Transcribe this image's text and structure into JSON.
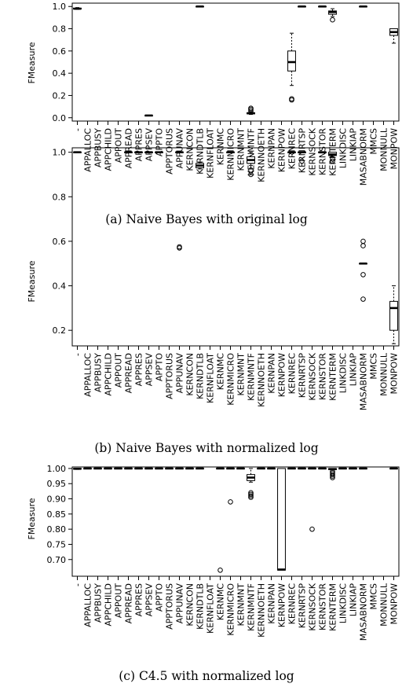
{
  "figure": {
    "captions": [
      "(a) Naive Bayes with original log",
      "(b) Naive Bayes with normalized log",
      "(c) C4.5 with normalized log"
    ]
  },
  "chart_data": [
    {
      "type": "box",
      "caption": "(a) Naive Bayes with original log",
      "ylabel": "FMeasure",
      "ylim": [
        -0.03,
        1.03
      ],
      "yticks": [
        0.0,
        0.2,
        0.4,
        0.6,
        0.8,
        1.0
      ],
      "ytick_labels": [
        "0.0",
        "0.2",
        "0.4",
        "0.6",
        "0.8",
        "1.0"
      ],
      "categories": [
        "-",
        "APPALLOC",
        "APPBUSY",
        "APPCHILD",
        "APPOUT",
        "APPREAD",
        "APPRES",
        "APPSEV",
        "APPTO",
        "APPTORUS",
        "APPUNAV",
        "KERNCON",
        "KERNDTLB",
        "KERNFLOAT",
        "KERNMC",
        "KERNMICRO",
        "KERNMNT",
        "KERNMNTF",
        "KERNNOETH",
        "KERNPAN",
        "KERNPOW",
        "KERNREC",
        "KERNRTSP",
        "KERNSOCK",
        "KERNSTOR",
        "KERNTERM",
        "LINKDISC",
        "LINKIAP",
        "MASABNORM",
        "MMCS",
        "MONNULL",
        "MONPOW"
      ],
      "boxes": [
        {
          "category": "-",
          "whislo": 0.975,
          "q1": 0.978,
          "med": 0.98,
          "q3": 0.985,
          "whishi": 0.99,
          "fliers": []
        },
        {
          "category": "APPSEV",
          "whislo": 0.02,
          "q1": 0.02,
          "med": 0.02,
          "q3": 0.02,
          "whishi": 0.02,
          "fliers": []
        },
        {
          "category": "KERNDTLB",
          "whislo": 1.0,
          "q1": 1.0,
          "med": 1.0,
          "q3": 1.0,
          "whishi": 1.0,
          "fliers": []
        },
        {
          "category": "KERNMNTF",
          "whislo": 0.03,
          "q1": 0.035,
          "med": 0.04,
          "q3": 0.045,
          "whishi": 0.05,
          "fliers": [
            0.06,
            0.075,
            0.085
          ]
        },
        {
          "category": "KERNREC",
          "whislo": 0.29,
          "q1": 0.42,
          "med": 0.5,
          "q3": 0.6,
          "whishi": 0.76,
          "fliers": [
            0.16,
            0.17
          ]
        },
        {
          "category": "KERNRTSP",
          "whislo": 1.0,
          "q1": 1.0,
          "med": 1.0,
          "q3": 1.0,
          "whishi": 1.0,
          "fliers": []
        },
        {
          "category": "KERNSTOR",
          "whislo": 1.0,
          "q1": 1.0,
          "med": 1.0,
          "q3": 1.0,
          "whishi": 1.0,
          "fliers": []
        },
        {
          "category": "KERNTERM",
          "whislo": 0.91,
          "q1": 0.93,
          "med": 0.95,
          "q3": 0.96,
          "whishi": 0.98,
          "fliers": [
            0.88
          ]
        },
        {
          "category": "MASABNORM",
          "whislo": 1.0,
          "q1": 1.0,
          "med": 1.0,
          "q3": 1.0,
          "whishi": 1.0,
          "fliers": []
        },
        {
          "category": "MONPOW",
          "whislo": 0.67,
          "q1": 0.74,
          "med": 0.77,
          "q3": 0.8,
          "whishi": 0.8,
          "fliers": []
        }
      ]
    },
    {
      "type": "box",
      "caption": "(b) Naive Bayes with normalized log",
      "ylabel": "FMeasure",
      "ylim": [
        0.13,
        1.02
      ],
      "yticks": [
        0.2,
        0.4,
        0.6,
        0.8,
        1.0
      ],
      "ytick_labels": [
        "0.2",
        "0.4",
        "0.6",
        "0.8",
        "1.0"
      ],
      "categories": [
        "-",
        "APPALLOC",
        "APPBUSY",
        "APPCHILD",
        "APPOUT",
        "APPREAD",
        "APPRES",
        "APPSEV",
        "APPTO",
        "APPTORUS",
        "APPUNAV",
        "KERNCON",
        "KERNDTLB",
        "KERNFLOAT",
        "KERNMC",
        "KERNMICRO",
        "KERNMNT",
        "KERNMNTF",
        "KERNNOETH",
        "KERNPAN",
        "KERNPOW",
        "KERNREC",
        "KERNRTSP",
        "KERNSOCK",
        "KERNSTOR",
        "KERNTERM",
        "LINKDISC",
        "LINKIAP",
        "MASABNORM",
        "MMCS",
        "MONNULL",
        "MONPOW"
      ],
      "boxes": [
        {
          "category": "-",
          "whislo": 1.0,
          "q1": 1.0,
          "med": 1.0,
          "q3": 1.0,
          "whishi": 1.0,
          "fliers": []
        },
        {
          "category": "APPREAD",
          "whislo": 1.0,
          "q1": 1.0,
          "med": 1.0,
          "q3": 1.0,
          "whishi": 1.0,
          "fliers": []
        },
        {
          "category": "APPRES",
          "whislo": 1.0,
          "q1": 1.0,
          "med": 1.0,
          "q3": 1.0,
          "whishi": 1.0,
          "fliers": []
        },
        {
          "category": "APPSEV",
          "whislo": 1.0,
          "q1": 1.0,
          "med": 1.0,
          "q3": 1.0,
          "whishi": 1.0,
          "fliers": []
        },
        {
          "category": "APPTO",
          "whislo": 1.0,
          "q1": 1.0,
          "med": 1.0,
          "q3": 1.0,
          "whishi": 1.0,
          "fliers": []
        },
        {
          "category": "APPUNAV",
          "whislo": 1.0,
          "q1": 1.0,
          "med": 1.0,
          "q3": 1.0,
          "whishi": 1.0,
          "fliers": [
            0.57,
            0.575
          ]
        },
        {
          "category": "KERNDTLB",
          "whislo": 0.925,
          "q1": 0.93,
          "med": 0.94,
          "q3": 0.95,
          "whishi": 0.955,
          "fliers": []
        },
        {
          "category": "KERNMICRO",
          "whislo": 1.0,
          "q1": 1.0,
          "med": 1.0,
          "q3": 1.0,
          "whishi": 1.0,
          "fliers": []
        },
        {
          "category": "KERNMNTF",
          "whislo": 0.94,
          "q1": 0.95,
          "med": 0.965,
          "q3": 0.98,
          "whishi": 1.0,
          "fliers": [
            0.92,
            0.9
          ]
        },
        {
          "category": "KERNREC",
          "whislo": 1.0,
          "q1": 1.0,
          "med": 1.0,
          "q3": 1.0,
          "whishi": 1.0,
          "fliers": []
        },
        {
          "category": "KERNRTSP",
          "whislo": 1.0,
          "q1": 1.0,
          "med": 1.0,
          "q3": 1.0,
          "whishi": 1.0,
          "fliers": [
            0.96
          ]
        },
        {
          "category": "KERNSTOR",
          "whislo": 1.0,
          "q1": 1.0,
          "med": 1.0,
          "q3": 1.0,
          "whishi": 1.0,
          "fliers": []
        },
        {
          "category": "KERNTERM",
          "whislo": 0.98,
          "q1": 0.985,
          "med": 0.99,
          "q3": 1.0,
          "whishi": 1.0,
          "fliers": [
            0.97,
            0.96
          ]
        },
        {
          "category": "MASABNORM",
          "whislo": 0.5,
          "q1": 0.5,
          "med": 0.5,
          "q3": 0.5,
          "whishi": 0.5,
          "fliers": [
            0.6,
            0.58,
            0.45,
            0.34
          ]
        },
        {
          "category": "MONPOW",
          "whislo": 0.14,
          "q1": 0.2,
          "med": 0.3,
          "q3": 0.33,
          "whishi": 0.4,
          "fliers": []
        }
      ]
    },
    {
      "type": "box",
      "caption": "(c) C4.5 with normalized log",
      "ylabel": "FMeasure",
      "ylim": [
        0.645,
        1.005
      ],
      "yticks": [
        0.7,
        0.75,
        0.8,
        0.85,
        0.9,
        0.95,
        1.0
      ],
      "ytick_labels": [
        "0.70",
        "0.75",
        "0.80",
        "0.85",
        "0.90",
        "0.95",
        "1.00"
      ],
      "categories": [
        "-",
        "APPALLOC",
        "APPBUSY",
        "APPCHILD",
        "APPOUT",
        "APPREAD",
        "APPRES",
        "APPSEV",
        "APPTO",
        "APPTORUS",
        "APPUNAV",
        "KERNCON",
        "KERNDTLB",
        "KERNFLOAT",
        "KERNMC",
        "KERNMICRO",
        "KERNMNT",
        "KERNMNTF",
        "KERNNOETH",
        "KERNPAN",
        "KERNPOW",
        "KERNREC",
        "KERNRTSP",
        "KERNSOCK",
        "KERNSTOR",
        "KERNTERM",
        "LINKDISC",
        "LINKIAP",
        "MASABNORM",
        "MMCS",
        "MONNULL",
        "MONPOW"
      ],
      "boxes": [
        {
          "category": "-",
          "whislo": 0.997,
          "q1": 0.998,
          "med": 0.999,
          "q3": 1.0,
          "whishi": 1.0,
          "fliers": []
        },
        {
          "category": "APPALLOC",
          "whislo": 1.0,
          "q1": 1.0,
          "med": 1.0,
          "q3": 1.0,
          "whishi": 1.0,
          "fliers": []
        },
        {
          "category": "APPBUSY",
          "whislo": 1.0,
          "q1": 1.0,
          "med": 1.0,
          "q3": 1.0,
          "whishi": 1.0,
          "fliers": []
        },
        {
          "category": "APPCHILD",
          "whislo": 1.0,
          "q1": 1.0,
          "med": 1.0,
          "q3": 1.0,
          "whishi": 1.0,
          "fliers": []
        },
        {
          "category": "APPOUT",
          "whislo": 1.0,
          "q1": 1.0,
          "med": 1.0,
          "q3": 1.0,
          "whishi": 1.0,
          "fliers": []
        },
        {
          "category": "APPREAD",
          "whislo": 1.0,
          "q1": 1.0,
          "med": 1.0,
          "q3": 1.0,
          "whishi": 1.0,
          "fliers": []
        },
        {
          "category": "APPRES",
          "whislo": 1.0,
          "q1": 1.0,
          "med": 1.0,
          "q3": 1.0,
          "whishi": 1.0,
          "fliers": []
        },
        {
          "category": "APPSEV",
          "whislo": 1.0,
          "q1": 1.0,
          "med": 1.0,
          "q3": 1.0,
          "whishi": 1.0,
          "fliers": []
        },
        {
          "category": "APPTO",
          "whislo": 1.0,
          "q1": 1.0,
          "med": 1.0,
          "q3": 1.0,
          "whishi": 1.0,
          "fliers": []
        },
        {
          "category": "APPTORUS",
          "whislo": 1.0,
          "q1": 1.0,
          "med": 1.0,
          "q3": 1.0,
          "whishi": 1.0,
          "fliers": []
        },
        {
          "category": "APPUNAV",
          "whislo": 1.0,
          "q1": 1.0,
          "med": 1.0,
          "q3": 1.0,
          "whishi": 1.0,
          "fliers": []
        },
        {
          "category": "KERNCON",
          "whislo": 1.0,
          "q1": 1.0,
          "med": 1.0,
          "q3": 1.0,
          "whishi": 1.0,
          "fliers": []
        },
        {
          "category": "KERNDTLB",
          "whislo": 1.0,
          "q1": 1.0,
          "med": 1.0,
          "q3": 1.0,
          "whishi": 1.0,
          "fliers": []
        },
        {
          "category": "KERNMC",
          "whislo": 1.0,
          "q1": 1.0,
          "med": 1.0,
          "q3": 1.0,
          "whishi": 1.0,
          "fliers": [
            0.665
          ]
        },
        {
          "category": "KERNMICRO",
          "whislo": 1.0,
          "q1": 1.0,
          "med": 1.0,
          "q3": 1.0,
          "whishi": 1.0,
          "fliers": [
            0.89
          ]
        },
        {
          "category": "KERNMNT",
          "whislo": 1.0,
          "q1": 1.0,
          "med": 1.0,
          "q3": 1.0,
          "whishi": 1.0,
          "fliers": []
        },
        {
          "category": "KERNMNTF",
          "whislo": 0.955,
          "q1": 0.96,
          "med": 0.97,
          "q3": 0.98,
          "whishi": 1.0,
          "fliers": [
            0.92,
            0.915,
            0.91,
            0.905
          ]
        },
        {
          "category": "KERNNOETH",
          "whislo": 1.0,
          "q1": 1.0,
          "med": 1.0,
          "q3": 1.0,
          "whishi": 1.0,
          "fliers": []
        },
        {
          "category": "KERNPAN",
          "whislo": 1.0,
          "q1": 1.0,
          "med": 1.0,
          "q3": 1.0,
          "whishi": 1.0,
          "fliers": []
        },
        {
          "category": "KERNPOW",
          "whislo": 0.665,
          "q1": 0.665,
          "med": 0.667,
          "q3": 1.0,
          "whishi": 1.0,
          "fliers": []
        },
        {
          "category": "KERNREC",
          "whislo": 1.0,
          "q1": 1.0,
          "med": 1.0,
          "q3": 1.0,
          "whishi": 1.0,
          "fliers": []
        },
        {
          "category": "KERNRTSP",
          "whislo": 1.0,
          "q1": 1.0,
          "med": 1.0,
          "q3": 1.0,
          "whishi": 1.0,
          "fliers": []
        },
        {
          "category": "KERNSOCK",
          "whislo": 1.0,
          "q1": 1.0,
          "med": 1.0,
          "q3": 1.0,
          "whishi": 1.0,
          "fliers": [
            0.8
          ]
        },
        {
          "category": "KERNSTOR",
          "whislo": 1.0,
          "q1": 1.0,
          "med": 1.0,
          "q3": 1.0,
          "whishi": 1.0,
          "fliers": []
        },
        {
          "category": "KERNTERM",
          "whislo": 0.995,
          "q1": 0.996,
          "med": 0.998,
          "q3": 1.0,
          "whishi": 1.0,
          "fliers": [
            0.99,
            0.985,
            0.98,
            0.975,
            0.97
          ]
        },
        {
          "category": "LINKDISC",
          "whislo": 1.0,
          "q1": 1.0,
          "med": 1.0,
          "q3": 1.0,
          "whishi": 1.0,
          "fliers": []
        },
        {
          "category": "LINKIAP",
          "whislo": 1.0,
          "q1": 1.0,
          "med": 1.0,
          "q3": 1.0,
          "whishi": 1.0,
          "fliers": []
        },
        {
          "category": "MASABNORM",
          "whislo": 1.0,
          "q1": 1.0,
          "med": 1.0,
          "q3": 1.0,
          "whishi": 1.0,
          "fliers": []
        },
        {
          "category": "MONPOW",
          "whislo": 1.0,
          "q1": 1.0,
          "med": 1.0,
          "q3": 1.0,
          "whishi": 1.0,
          "fliers": []
        }
      ]
    }
  ]
}
